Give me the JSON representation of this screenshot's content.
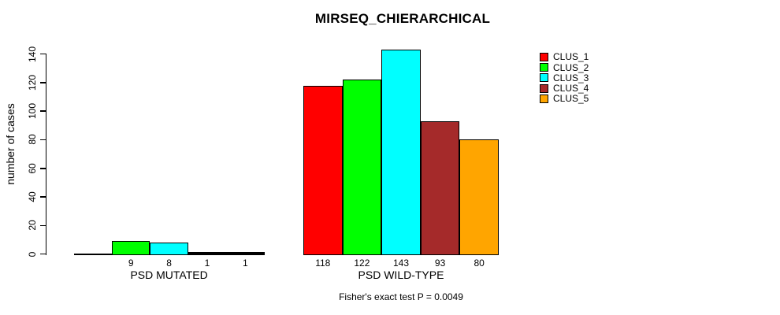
{
  "title": "MIRSEQ_CHIERARCHICAL",
  "y_axis": {
    "label": "number of cases"
  },
  "footer": "Fisher's exact test P = 0.0049",
  "chart_data": {
    "type": "bar",
    "title": "MIRSEQ_CHIERARCHICAL",
    "xlabel": "",
    "ylabel": "number of cases",
    "ylim": [
      0,
      145
    ],
    "yticks": [
      0,
      20,
      40,
      60,
      80,
      100,
      120,
      140
    ],
    "grid": false,
    "legend_position": "right",
    "categories": [
      "PSD MUTATED",
      "PSD WILD-TYPE"
    ],
    "series": [
      {
        "name": "CLUS_1",
        "color": "#FF0000",
        "values": [
          0,
          118
        ]
      },
      {
        "name": "CLUS_2",
        "color": "#00FF00",
        "values": [
          9,
          122
        ]
      },
      {
        "name": "CLUS_3",
        "color": "#00FFFF",
        "values": [
          8,
          143
        ]
      },
      {
        "name": "CLUS_4",
        "color": "#A52A2A",
        "values": [
          1,
          93
        ]
      },
      {
        "name": "CLUS_5",
        "color": "#FFA500",
        "values": [
          1,
          80
        ]
      }
    ],
    "bar_value_labels": [
      [
        "",
        "9",
        "8",
        "1",
        "1"
      ],
      [
        "118",
        "122",
        "143",
        "93",
        "80"
      ]
    ],
    "annotation": "Fisher's exact test P = 0.0049"
  }
}
